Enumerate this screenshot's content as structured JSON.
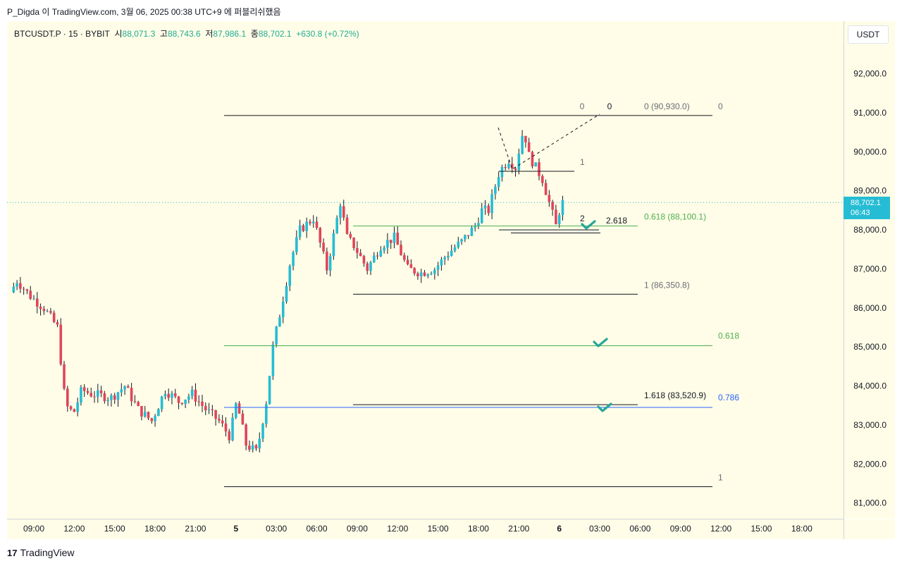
{
  "header": {
    "caption": "P_Digda 이 TradingView.com, 3월 06, 2025 00:38 UTC+9 에 퍼블리쉬했음"
  },
  "symbol": {
    "name": "BTCUSDT.P · 15 · BYBIT",
    "open_label": "시",
    "open": "88,071.3",
    "high_label": "고",
    "high": "88,743.6",
    "low_label": "저",
    "low": "87,986.1",
    "close_label": "종",
    "close": "88,702.1",
    "change": "+630.8 (+0.72%)"
  },
  "currency": "USDT",
  "price_tag": {
    "price": "88,702.1",
    "countdown": "06:43"
  },
  "footer": {
    "logo_text": "TradingView"
  },
  "colors": {
    "background": "#fffde7",
    "up": "#26bcd4",
    "down": "#e0455a",
    "fib_green": "#4caf50",
    "fib_blue": "#2962ff",
    "line": "#131722",
    "check": "#26a69a"
  },
  "chart_data": {
    "type": "candlestick",
    "ylim": [
      80600,
      92900
    ],
    "y_ticks": [
      "92,000.0",
      "91,000.0",
      "90,000.0",
      "89,000.0",
      "88,000.0",
      "87,000.0",
      "86,000.0",
      "85,000.0",
      "84,000.0",
      "83,000.0",
      "82,000.0",
      "81,000.0"
    ],
    "y_tick_values": [
      92000,
      91000,
      90000,
      89000,
      88000,
      87000,
      86000,
      85000,
      84000,
      83000,
      82000,
      81000
    ],
    "x_ticks": [
      "09:00",
      "12:00",
      "15:00",
      "18:00",
      "21:00",
      "5",
      "03:00",
      "06:00",
      "09:00",
      "12:00",
      "15:00",
      "18:00",
      "21:00",
      "6",
      "03:00",
      "06:00",
      "09:00",
      "12:00",
      "15:00",
      "18:00"
    ],
    "x_tick_hours": [
      9,
      12,
      15,
      18,
      21,
      24,
      27,
      30,
      33,
      36,
      39,
      42,
      45,
      48,
      51,
      54,
      57,
      60,
      63,
      66
    ],
    "current_price": 88702.1,
    "price_path": [
      [
        7.5,
        86400
      ],
      [
        8,
        86700
      ],
      [
        9,
        86300
      ],
      [
        10,
        86000
      ],
      [
        11,
        85500
      ],
      [
        11.6,
        83500
      ],
      [
        12.2,
        83300
      ],
      [
        12.8,
        83900
      ],
      [
        13.5,
        83800
      ],
      [
        15,
        83700
      ],
      [
        16,
        84000
      ],
      [
        17,
        83400
      ],
      [
        18,
        83100
      ],
      [
        19,
        83900
      ],
      [
        20,
        83600
      ],
      [
        21,
        83800
      ],
      [
        22,
        83400
      ],
      [
        23,
        83100
      ],
      [
        23.8,
        82700
      ],
      [
        24.3,
        83600
      ],
      [
        25,
        82500
      ],
      [
        25.8,
        82300
      ],
      [
        26.5,
        83600
      ],
      [
        27,
        85000
      ],
      [
        27.6,
        86000
      ],
      [
        28.3,
        87200
      ],
      [
        29,
        88000
      ],
      [
        30,
        88300
      ],
      [
        31,
        87000
      ],
      [
        32,
        88700
      ],
      [
        32.5,
        87800
      ],
      [
        33,
        87600
      ],
      [
        34,
        87000
      ],
      [
        35,
        87600
      ],
      [
        36,
        87800
      ],
      [
        37,
        87000
      ],
      [
        38,
        86900
      ],
      [
        39,
        87000
      ],
      [
        40,
        87400
      ],
      [
        41,
        87700
      ],
      [
        42,
        88100
      ],
      [
        42.5,
        88500
      ],
      [
        43,
        88500
      ],
      [
        43.8,
        89500
      ],
      [
        44.5,
        89800
      ],
      [
        45,
        89600
      ],
      [
        45.6,
        90600
      ],
      [
        46,
        89900
      ],
      [
        47,
        89300
      ],
      [
        48,
        88100
      ],
      [
        48.4,
        88700
      ]
    ],
    "fib_levels": [
      {
        "label": "0",
        "price": 90930
      },
      {
        "label": "0",
        "price": 90930
      },
      {
        "label": "0 (90,930.0)",
        "price": 90930
      },
      {
        "label": "0",
        "price": 90930
      },
      {
        "label": "1",
        "price": 89500
      },
      {
        "label": "0.618 (88,100.1)",
        "price": 88100.1
      },
      {
        "label": "2",
        "price": 88000
      },
      {
        "label": "2.618",
        "price": 88000
      },
      {
        "label": "1 (86,350.8)",
        "price": 86350.8
      },
      {
        "label": "0.618",
        "price": 85030
      },
      {
        "label": "1.618 (83,520.9)",
        "price": 83520.9
      },
      {
        "label": "0.786",
        "price": 83450
      },
      {
        "label": "1",
        "price": 81420
      }
    ]
  }
}
